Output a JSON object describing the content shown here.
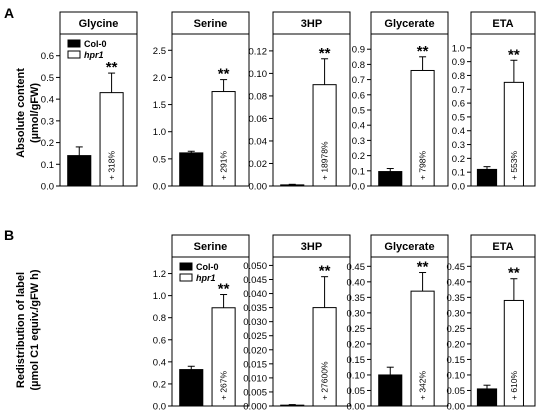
{
  "figure": {
    "panel_a_label": "A",
    "panel_b_label": "B",
    "ylabel_a": [
      "Absolute content",
      "(µmol/gFW)"
    ],
    "ylabel_b": [
      "Redistribution of label",
      "(µmol C1 equiv./gFW h)"
    ]
  },
  "chart_data": [
    {
      "panel": "A",
      "type": "bar",
      "title": "Glycine",
      "categories": [
        "Col-0",
        "hpr1"
      ],
      "values": [
        0.14,
        0.43
      ],
      "errors": [
        0.04,
        0.09
      ],
      "ylim": [
        0,
        0.7
      ],
      "yticks": [
        "0.0",
        "0.1",
        "0.2",
        "0.3",
        "0.4",
        "0.5",
        "0.6"
      ],
      "significance": "**",
      "annotation": "+ 318%",
      "legend": {
        "entries": [
          "Col-0",
          "hpr1"
        ],
        "placement": "top-left"
      }
    },
    {
      "panel": "A",
      "type": "bar",
      "title": "Serine",
      "categories": [
        "Col-0",
        "hpr1"
      ],
      "values": [
        0.61,
        1.74
      ],
      "errors": [
        0.03,
        0.22
      ],
      "ylim": [
        0,
        2.8
      ],
      "yticks": [
        "0.0",
        "0.5",
        "1.0",
        "1.5",
        "2.0",
        "2.5"
      ],
      "significance": "**",
      "annotation": "+ 291%"
    },
    {
      "panel": "A",
      "type": "bar",
      "title": "3HP",
      "categories": [
        "Col-0",
        "hpr1"
      ],
      "values": [
        0.001,
        0.09
      ],
      "errors": [
        0.0005,
        0.023
      ],
      "ylim": [
        0,
        0.135
      ],
      "yticks": [
        "0.00",
        "0.02",
        "0.04",
        "0.06",
        "0.08",
        "0.10",
        "0.12"
      ],
      "significance": "**",
      "annotation": "+ 18978%"
    },
    {
      "panel": "A",
      "type": "bar",
      "title": "Glycerate",
      "categories": [
        "Col-0",
        "hpr1"
      ],
      "values": [
        0.095,
        0.76
      ],
      "errors": [
        0.02,
        0.09
      ],
      "ylim": [
        0,
        1.0
      ],
      "yticks": [
        "0.0",
        "0.1",
        "0.2",
        "0.3",
        "0.4",
        "0.5",
        "0.6",
        "0.7",
        "0.8",
        "0.9"
      ],
      "significance": "**",
      "annotation": "+ 798%"
    },
    {
      "panel": "A",
      "type": "bar",
      "title": "ETA",
      "categories": [
        "Col-0",
        "hpr1"
      ],
      "values": [
        0.12,
        0.75
      ],
      "errors": [
        0.02,
        0.16
      ],
      "ylim": [
        0,
        1.1
      ],
      "yticks": [
        "0.0",
        "0.1",
        "0.2",
        "0.3",
        "0.4",
        "0.5",
        "0.6",
        "0.7",
        "0.8",
        "0.9",
        "1.0"
      ],
      "significance": "**",
      "annotation": "+ 553%"
    },
    {
      "panel": "B",
      "type": "bar",
      "title": "Serine",
      "categories": [
        "Col-0",
        "hpr1"
      ],
      "values": [
        0.33,
        0.89
      ],
      "errors": [
        0.03,
        0.12
      ],
      "ylim": [
        0,
        1.35
      ],
      "yticks": [
        "0.0",
        "0.2",
        "0.4",
        "0.6",
        "0.8",
        "1.0",
        "1.2"
      ],
      "significance": "**",
      "annotation": "+ 267%",
      "legend": {
        "entries": [
          "Col-0",
          "hpr1"
        ],
        "placement": "top-left"
      }
    },
    {
      "panel": "B",
      "type": "bar",
      "title": "3HP",
      "categories": [
        "Col-0",
        "hpr1"
      ],
      "values": [
        0.0003,
        0.035
      ],
      "errors": [
        0.0002,
        0.011
      ],
      "ylim": [
        0,
        0.053
      ],
      "yticks": [
        "0.000",
        "0.005",
        "0.010",
        "0.015",
        "0.020",
        "0.025",
        "0.030",
        "0.035",
        "0.040",
        "0.045",
        "0.050"
      ],
      "significance": "**",
      "annotation": "+ 27600%"
    },
    {
      "panel": "B",
      "type": "bar",
      "title": "Glycerate",
      "categories": [
        "Col-0",
        "hpr1"
      ],
      "values": [
        0.1,
        0.37
      ],
      "errors": [
        0.025,
        0.06
      ],
      "ylim": [
        0,
        0.48
      ],
      "yticks": [
        "0.00",
        "0.05",
        "0.10",
        "0.15",
        "0.20",
        "0.25",
        "0.30",
        "0.35",
        "0.40",
        "0.45"
      ],
      "significance": "**",
      "annotation": "+ 342%"
    },
    {
      "panel": "B",
      "type": "bar",
      "title": "ETA",
      "categories": [
        "Col-0",
        "hpr1"
      ],
      "values": [
        0.055,
        0.34
      ],
      "errors": [
        0.012,
        0.07
      ],
      "ylim": [
        0,
        0.48
      ],
      "yticks": [
        "0.00",
        "0.05",
        "0.10",
        "0.15",
        "0.20",
        "0.25",
        "0.30",
        "0.35",
        "0.40",
        "0.45"
      ],
      "significance": "**",
      "annotation": "+ 610%"
    }
  ],
  "colors": {
    "col0": "#000000",
    "hpr1": "#ffffff"
  }
}
